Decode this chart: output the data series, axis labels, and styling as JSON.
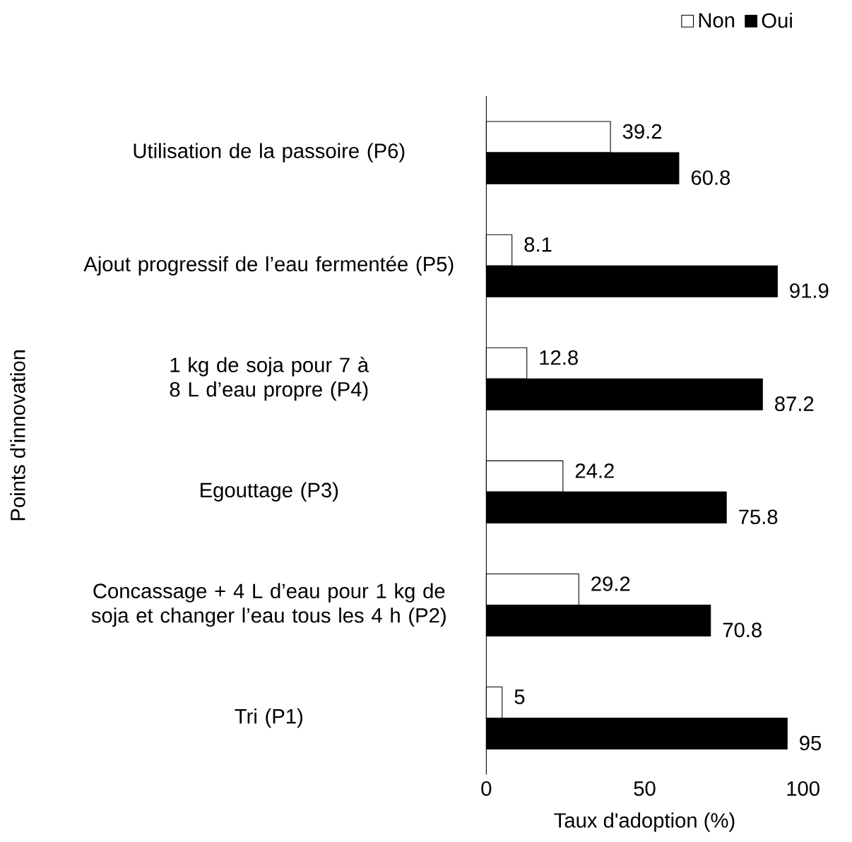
{
  "chart_data": {
    "type": "bar",
    "orientation": "horizontal",
    "xlabel": "Taux d'adoption (%)",
    "ylabel": "Points d'innovation",
    "categories": [
      "Utilisation de la  passoire (P6)",
      "Ajout progressif de l’eau fermentée (P5)",
      "1 kg de soja pour 7 à 8 L d’eau propre (P4)",
      "Egouttage (P3)",
      "Concassage + 4 L d’eau pour 1 kg de soja et changer l’eau tous les 4 h (P2)",
      "Tri (P1)"
    ],
    "series": [
      {
        "name": "Non",
        "color": "#ffffff",
        "values": [
          39.2,
          8.1,
          12.8,
          24.2,
          29.2,
          5
        ]
      },
      {
        "name": "Oui",
        "color": "#000000",
        "values": [
          60.8,
          91.9,
          87.2,
          75.8,
          70.8,
          95
        ]
      }
    ],
    "xlim": [
      0,
      100
    ],
    "xticks": [
      0,
      50,
      100
    ],
    "data_labels": true,
    "legend": "top right"
  }
}
